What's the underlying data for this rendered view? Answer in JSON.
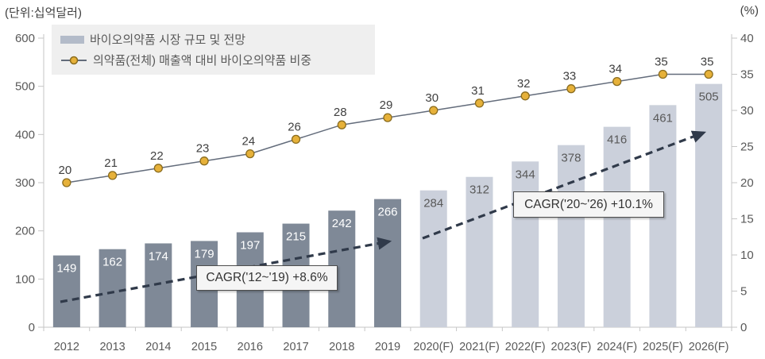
{
  "colors": {
    "bar_actual": "#7f8997",
    "bar_forecast": "#cbd0db",
    "line": "#636c7b",
    "marker_fill": "#e6b13a",
    "marker_stroke": "#8a6c1e",
    "bar_label_on_actual": "#ffffff",
    "bar_label_on_forecast": "#595959",
    "line_label": "#404040",
    "axis_line": "#c6c6c6",
    "axis_text": "#595959",
    "unit_text": "#404040",
    "legend_bg": "#efefef",
    "legend_text": "#595959",
    "legend_swatch_bar": "#b3bbc9",
    "annotation_bg": "#f5f5f5",
    "annotation_border": "#4d4d4d",
    "annotation_text": "#333333",
    "arrow": "#303a4a"
  },
  "chart_data": {
    "type": "bar-line-combo",
    "categories": [
      "2012",
      "2013",
      "2014",
      "2015",
      "2016",
      "2017",
      "2018",
      "2019",
      "2020(F)",
      "2021(F)",
      "2022(F)",
      "2023(F)",
      "2024(F)",
      "2025(F)",
      "2026(F)"
    ],
    "series": [
      {
        "name": "바이오의약품 시장 규모 및 전망",
        "type": "bar",
        "axis": "left",
        "values": [
          149,
          162,
          174,
          179,
          197,
          215,
          242,
          266,
          284,
          312,
          344,
          378,
          416,
          461,
          505
        ],
        "forecast_start_index": 8
      },
      {
        "name": "의약품(전체) 매출액 대비 바이오의약품 비중",
        "type": "line",
        "axis": "right",
        "values": [
          20,
          21,
          22,
          23,
          24,
          26,
          28,
          29,
          30,
          31,
          32,
          33,
          34,
          35,
          35
        ]
      }
    ],
    "left_axis": {
      "unit_label": "(단위:십억달러)",
      "min": 0,
      "max": 600,
      "step": 100,
      "ticks": [
        0,
        100,
        200,
        300,
        400,
        500,
        600
      ]
    },
    "right_axis": {
      "unit_label": "(%)",
      "min": 0,
      "max": 40,
      "step": 5,
      "ticks": [
        0,
        5,
        10,
        15,
        20,
        25,
        30,
        35,
        40
      ]
    },
    "grid": false,
    "legend_position": "top-left",
    "annotations": [
      {
        "text": "CAGR('12~'19)  +8.6%",
        "applies_to": "2012-2019"
      },
      {
        "text": "CAGR('20~'26)  +10.1%",
        "applies_to": "2020-2026"
      }
    ]
  }
}
